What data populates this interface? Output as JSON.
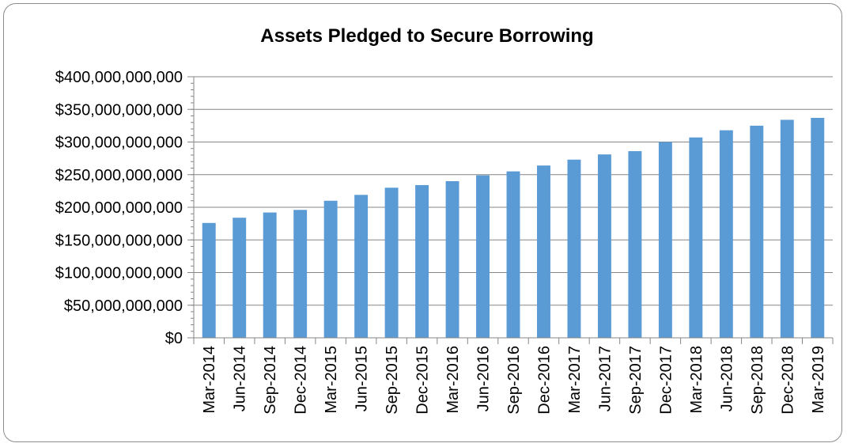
{
  "chart_data": {
    "type": "bar",
    "title": "Assets Pledged to Secure Borrowing",
    "xlabel": "",
    "ylabel": "",
    "categories": [
      "Mar-2014",
      "Jun-2014",
      "Sep-2014",
      "Dec-2014",
      "Mar-2015",
      "Jun-2015",
      "Sep-2015",
      "Dec-2015",
      "Mar-2016",
      "Jun-2016",
      "Sep-2016",
      "Dec-2016",
      "Mar-2017",
      "Jun-2017",
      "Sep-2017",
      "Dec-2017",
      "Mar-2018",
      "Jun-2018",
      "Sep-2018",
      "Dec-2018",
      "Mar-2019"
    ],
    "values": [
      176000000000,
      184000000000,
      192000000000,
      196000000000,
      210000000000,
      219000000000,
      230000000000,
      234000000000,
      240000000000,
      249000000000,
      255000000000,
      264000000000,
      273000000000,
      281000000000,
      286000000000,
      300000000000,
      307000000000,
      318000000000,
      325000000000,
      334000000000,
      337000000000
    ],
    "ylim": [
      0,
      400000000000
    ],
    "yticks": [
      0,
      50000000000,
      100000000000,
      150000000000,
      200000000000,
      250000000000,
      300000000000,
      350000000000,
      400000000000
    ],
    "ytick_labels": [
      "$0",
      "$50,000,000,000",
      "$100,000,000,000",
      "$150,000,000,000",
      "$200,000,000,000",
      "$250,000,000,000",
      "$300,000,000,000",
      "$350,000,000,000",
      "$400,000,000,000"
    ],
    "grid": true,
    "legend": false,
    "colors": {
      "bar": "#5b9bd5",
      "grid": "#868686",
      "axis": "#868686"
    }
  }
}
